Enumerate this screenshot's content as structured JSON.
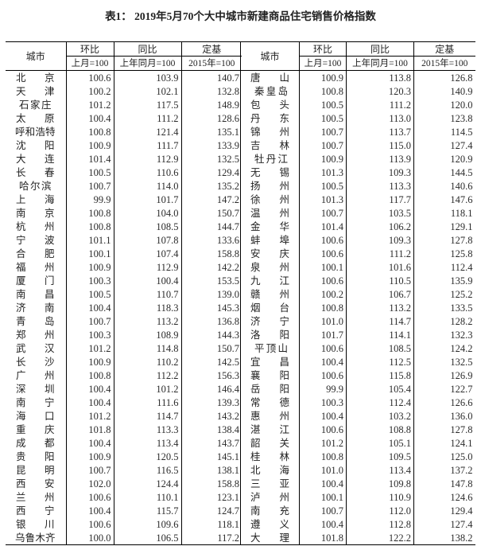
{
  "title": "表1：  2019年5月70个大中城市新建商品住宅销售价格指数",
  "header": {
    "city": "城市",
    "mom": "环比",
    "yoy": "同比",
    "base": "定基",
    "mom_sub": "上月=100",
    "yoy_sub": "上年同月=100",
    "base_sub": "2015年=100"
  },
  "left_rows": [
    [
      "北京",
      "100.6",
      "103.9",
      "140.7"
    ],
    [
      "天津",
      "100.2",
      "102.1",
      "132.8"
    ],
    [
      "石家庄",
      "101.2",
      "117.5",
      "148.9"
    ],
    [
      "太原",
      "100.4",
      "111.2",
      "128.6"
    ],
    [
      "呼和浩特",
      "100.8",
      "121.4",
      "135.1"
    ],
    [
      "沈阳",
      "100.9",
      "111.7",
      "133.9"
    ],
    [
      "大连",
      "101.4",
      "112.9",
      "132.5"
    ],
    [
      "长春",
      "100.5",
      "110.6",
      "129.4"
    ],
    [
      "哈尔滨",
      "100.7",
      "114.0",
      "135.2"
    ],
    [
      "上海",
      "99.9",
      "101.7",
      "147.2"
    ],
    [
      "南京",
      "100.8",
      "104.0",
      "150.7"
    ],
    [
      "杭州",
      "100.8",
      "108.5",
      "144.7"
    ],
    [
      "宁波",
      "101.1",
      "107.8",
      "133.6"
    ],
    [
      "合肥",
      "100.1",
      "107.4",
      "158.8"
    ],
    [
      "福州",
      "100.9",
      "112.9",
      "142.2"
    ],
    [
      "厦门",
      "100.3",
      "100.4",
      "153.5"
    ],
    [
      "南昌",
      "100.5",
      "110.7",
      "139.0"
    ],
    [
      "济南",
      "100.4",
      "118.3",
      "145.3"
    ],
    [
      "青岛",
      "100.7",
      "113.2",
      "136.8"
    ],
    [
      "郑州",
      "100.3",
      "108.9",
      "144.3"
    ],
    [
      "武汉",
      "101.2",
      "114.8",
      "150.7"
    ],
    [
      "长沙",
      "100.9",
      "110.2",
      "142.5"
    ],
    [
      "广州",
      "100.8",
      "112.2",
      "156.3"
    ],
    [
      "深圳",
      "100.4",
      "101.2",
      "146.4"
    ],
    [
      "南宁",
      "100.4",
      "111.6",
      "139.3"
    ],
    [
      "海口",
      "101.2",
      "114.7",
      "143.2"
    ],
    [
      "重庆",
      "101.8",
      "113.3",
      "138.4"
    ],
    [
      "成都",
      "100.4",
      "113.4",
      "143.7"
    ],
    [
      "贵阳",
      "100.9",
      "120.5",
      "145.1"
    ],
    [
      "昆明",
      "100.7",
      "116.5",
      "138.1"
    ],
    [
      "西安",
      "102.0",
      "124.4",
      "158.8"
    ],
    [
      "兰州",
      "100.6",
      "110.1",
      "123.1"
    ],
    [
      "西宁",
      "100.4",
      "115.7",
      "124.7"
    ],
    [
      "银川",
      "100.6",
      "109.6",
      "118.1"
    ],
    [
      "乌鲁木齐",
      "100.0",
      "106.5",
      "117.2"
    ]
  ],
  "right_rows": [
    [
      "唐山",
      "100.9",
      "113.8",
      "126.8"
    ],
    [
      "秦皇岛",
      "100.8",
      "120.3",
      "140.9"
    ],
    [
      "包头",
      "100.5",
      "111.2",
      "120.0"
    ],
    [
      "丹东",
      "100.5",
      "113.0",
      "123.8"
    ],
    [
      "锦州",
      "100.7",
      "113.7",
      "114.5"
    ],
    [
      "吉林",
      "100.7",
      "115.0",
      "127.4"
    ],
    [
      "牡丹江",
      "100.9",
      "113.9",
      "120.9"
    ],
    [
      "无锡",
      "101.3",
      "109.3",
      "144.5"
    ],
    [
      "扬州",
      "100.5",
      "113.3",
      "140.6"
    ],
    [
      "徐州",
      "101.3",
      "117.7",
      "147.6"
    ],
    [
      "温州",
      "100.7",
      "103.5",
      "118.1"
    ],
    [
      "金华",
      "101.4",
      "106.2",
      "129.1"
    ],
    [
      "蚌埠",
      "100.6",
      "109.3",
      "127.8"
    ],
    [
      "安庆",
      "100.6",
      "111.2",
      "125.8"
    ],
    [
      "泉州",
      "100.1",
      "101.6",
      "112.4"
    ],
    [
      "九江",
      "100.6",
      "110.5",
      "135.9"
    ],
    [
      "赣州",
      "100.2",
      "106.7",
      "125.2"
    ],
    [
      "烟台",
      "100.8",
      "113.2",
      "133.5"
    ],
    [
      "济宁",
      "101.0",
      "114.7",
      "128.2"
    ],
    [
      "洛阳",
      "101.7",
      "114.1",
      "132.3"
    ],
    [
      "平顶山",
      "100.6",
      "108.5",
      "124.2"
    ],
    [
      "宜昌",
      "100.4",
      "112.5",
      "132.5"
    ],
    [
      "襄阳",
      "100.6",
      "115.8",
      "126.9"
    ],
    [
      "岳阳",
      "99.9",
      "105.4",
      "122.7"
    ],
    [
      "常德",
      "100.3",
      "112.4",
      "126.6"
    ],
    [
      "惠州",
      "100.4",
      "103.2",
      "136.0"
    ],
    [
      "湛江",
      "100.6",
      "108.8",
      "127.8"
    ],
    [
      "韶关",
      "101.2",
      "105.1",
      "124.1"
    ],
    [
      "桂林",
      "100.8",
      "109.5",
      "125.0"
    ],
    [
      "北海",
      "101.0",
      "113.4",
      "137.2"
    ],
    [
      "三亚",
      "100.4",
      "109.8",
      "147.8"
    ],
    [
      "泸州",
      "100.1",
      "110.9",
      "124.6"
    ],
    [
      "南充",
      "100.7",
      "112.0",
      "129.4"
    ],
    [
      "遵义",
      "100.4",
      "112.8",
      "127.4"
    ],
    [
      "大理",
      "101.8",
      "122.2",
      "138.2"
    ]
  ]
}
